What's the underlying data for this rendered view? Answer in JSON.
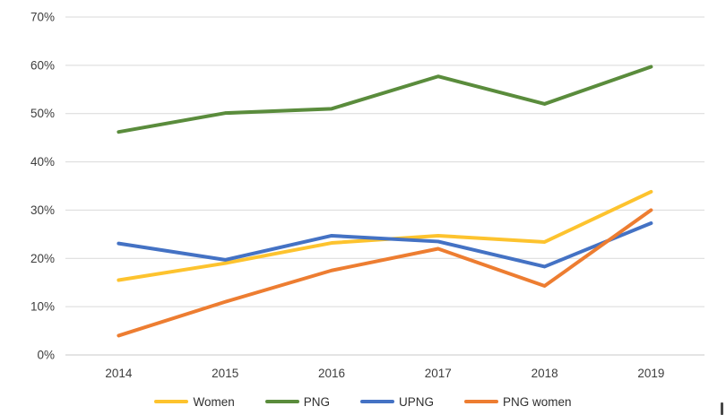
{
  "chart_data": {
    "type": "line",
    "title": "",
    "xlabel": "",
    "ylabel": "",
    "categories": [
      "2014",
      "2015",
      "2016",
      "2017",
      "2018",
      "2019"
    ],
    "series": [
      {
        "name": "Women",
        "color": "#FDC32E",
        "values": [
          15.5,
          19.0,
          23.2,
          24.7,
          23.4,
          33.8
        ]
      },
      {
        "name": "PNG",
        "color": "#5A8C3C",
        "values": [
          46.2,
          50.1,
          51.0,
          57.7,
          52.0,
          59.7
        ]
      },
      {
        "name": "UPNG",
        "color": "#4472C4",
        "values": [
          23.1,
          19.7,
          24.7,
          23.5,
          18.3,
          27.3
        ]
      },
      {
        "name": "PNG women",
        "color": "#ED7D31",
        "values": [
          4.0,
          11.0,
          17.5,
          22.0,
          14.3,
          30.0
        ]
      }
    ],
    "ylim": [
      0,
      70
    ],
    "ytick_step": 10,
    "y_tick_labels": [
      "0%",
      "10%",
      "20%",
      "30%",
      "40%",
      "50%",
      "60%",
      "70%"
    ],
    "grid": "horizontal",
    "gridline_color": "#D9D9D9",
    "axis_text_color": "#3d3d3d",
    "legend_position": "bottom"
  }
}
